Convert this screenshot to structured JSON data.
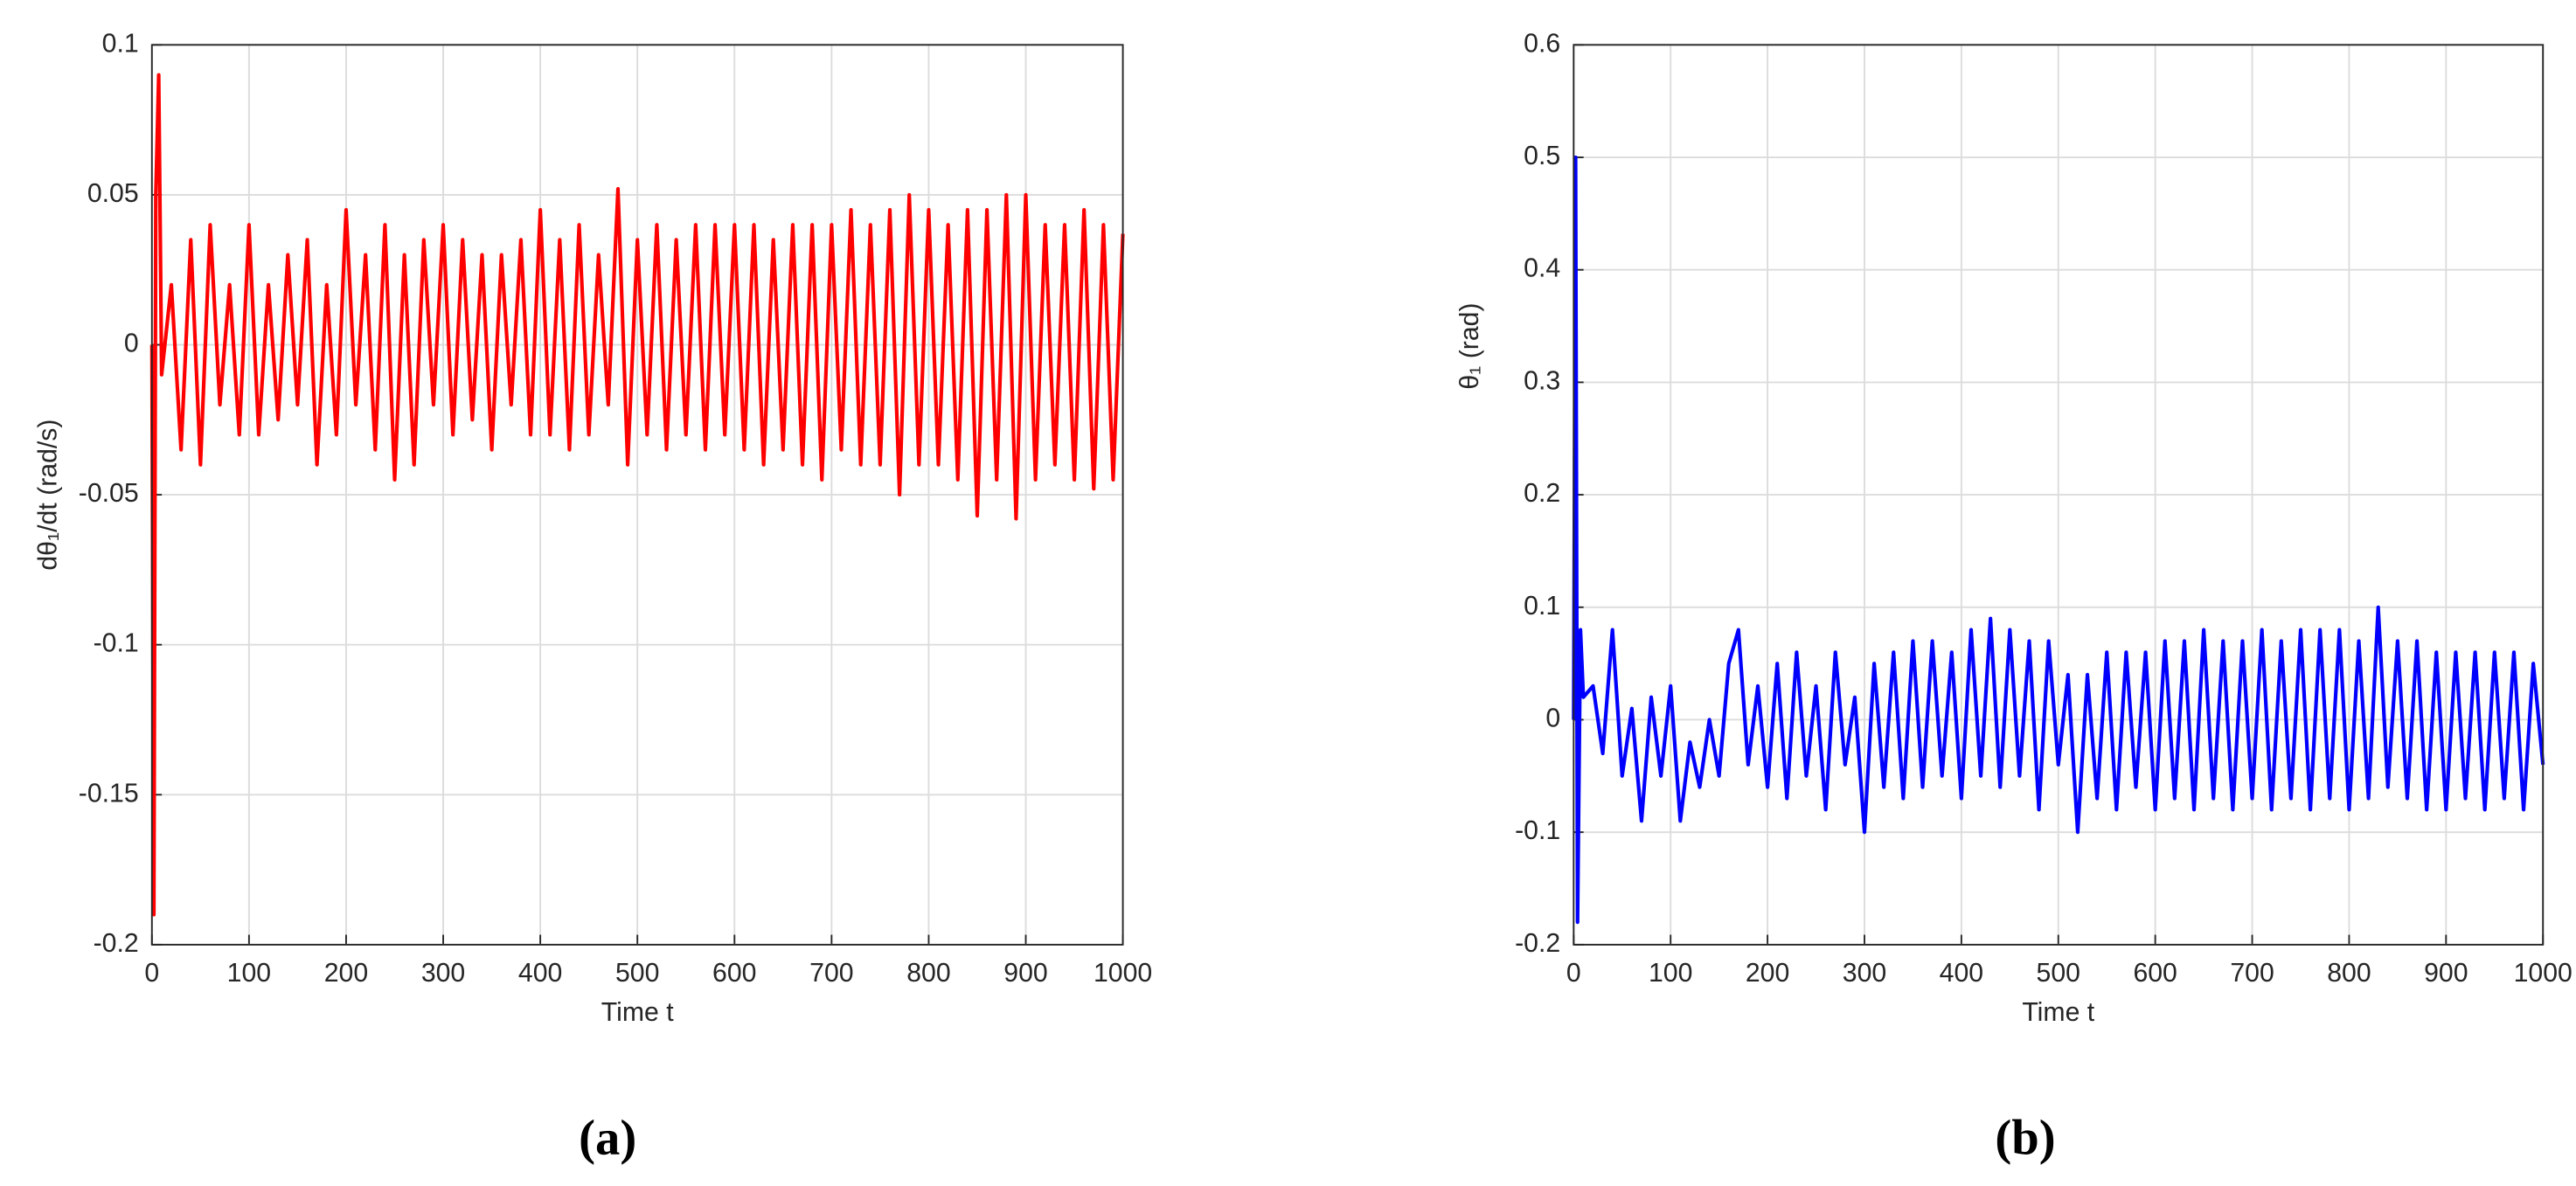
{
  "chart_data": [
    {
      "type": "line",
      "xlabel": "Time t",
      "ylabel": "dθ₁/dt (rad/s)",
      "caption": "(a)",
      "x": [
        0,
        2,
        4,
        7,
        10,
        20,
        30,
        40,
        50,
        60,
        70,
        80,
        90,
        100,
        110,
        120,
        130,
        140,
        150,
        160,
        170,
        180,
        190,
        200,
        210,
        220,
        230,
        240,
        250,
        260,
        270,
        280,
        290,
        300,
        310,
        320,
        330,
        340,
        350,
        360,
        370,
        380,
        390,
        400,
        410,
        420,
        430,
        440,
        450,
        460,
        470,
        480,
        490,
        500,
        510,
        520,
        530,
        540,
        550,
        560,
        570,
        580,
        590,
        600,
        610,
        620,
        630,
        640,
        650,
        660,
        670,
        680,
        690,
        700,
        710,
        720,
        730,
        740,
        750,
        760,
        770,
        780,
        790,
        800,
        810,
        820,
        830,
        840,
        850,
        860,
        870,
        880,
        890,
        900,
        910,
        920,
        930,
        940,
        950,
        960,
        970,
        980,
        990,
        1000
      ],
      "series": [
        {
          "color": "#ff0000",
          "values": [
            0,
            -0.19,
            0.05,
            0.09,
            -0.01,
            0.02,
            -0.035,
            0.035,
            -0.04,
            0.04,
            -0.02,
            0.02,
            -0.03,
            0.04,
            -0.03,
            0.02,
            -0.025,
            0.03,
            -0.02,
            0.035,
            -0.04,
            0.02,
            -0.03,
            0.045,
            -0.02,
            0.03,
            -0.035,
            0.04,
            -0.045,
            0.03,
            -0.04,
            0.035,
            -0.02,
            0.04,
            -0.03,
            0.035,
            -0.025,
            0.03,
            -0.035,
            0.03,
            -0.02,
            0.035,
            -0.03,
            0.045,
            -0.03,
            0.035,
            -0.035,
            0.04,
            -0.03,
            0.03,
            -0.02,
            0.052,
            -0.04,
            0.035,
            -0.03,
            0.04,
            -0.035,
            0.035,
            -0.03,
            0.04,
            -0.035,
            0.04,
            -0.03,
            0.04,
            -0.035,
            0.04,
            -0.04,
            0.035,
            -0.035,
            0.04,
            -0.04,
            0.04,
            -0.045,
            0.04,
            -0.035,
            0.045,
            -0.04,
            0.04,
            -0.04,
            0.045,
            -0.05,
            0.05,
            -0.04,
            0.045,
            -0.04,
            0.04,
            -0.045,
            0.045,
            -0.057,
            0.045,
            -0.045,
            0.05,
            -0.058,
            0.05,
            -0.045,
            0.04,
            -0.04,
            0.04,
            -0.045,
            0.045,
            -0.048,
            0.04,
            -0.045,
            0.037
          ]
        }
      ],
      "xlim": [
        0,
        1000
      ],
      "ylim": [
        -0.2,
        0.1
      ],
      "xticks": [
        0,
        100,
        200,
        300,
        400,
        500,
        600,
        700,
        800,
        900,
        1000
      ],
      "yticks": [
        -0.2,
        -0.15,
        -0.1,
        -0.05,
        0,
        0.05,
        0.1
      ],
      "grid": true
    },
    {
      "type": "line",
      "xlabel": "Time t",
      "ylabel": "θ₁ (rad)",
      "caption": "(b)",
      "x": [
        0,
        2,
        4,
        7,
        10,
        20,
        30,
        40,
        50,
        60,
        70,
        80,
        90,
        100,
        110,
        120,
        130,
        140,
        150,
        160,
        170,
        180,
        190,
        200,
        210,
        220,
        230,
        240,
        250,
        260,
        270,
        280,
        290,
        300,
        310,
        320,
        330,
        340,
        350,
        360,
        370,
        380,
        390,
        400,
        410,
        420,
        430,
        440,
        450,
        460,
        470,
        480,
        490,
        500,
        510,
        520,
        530,
        540,
        550,
        560,
        570,
        580,
        590,
        600,
        610,
        620,
        630,
        640,
        650,
        660,
        670,
        680,
        690,
        700,
        710,
        720,
        730,
        740,
        750,
        760,
        770,
        780,
        790,
        800,
        810,
        820,
        830,
        840,
        850,
        860,
        870,
        880,
        890,
        900,
        910,
        920,
        930,
        940,
        950,
        960,
        970,
        980,
        990,
        1000
      ],
      "series": [
        {
          "color": "#0000ff",
          "values": [
            0,
            0.5,
            -0.18,
            0.08,
            0.02,
            0.03,
            -0.03,
            0.08,
            -0.05,
            0.01,
            -0.09,
            0.02,
            -0.05,
            0.03,
            -0.09,
            -0.02,
            -0.06,
            0,
            -0.05,
            0.05,
            0.08,
            -0.04,
            0.03,
            -0.06,
            0.05,
            -0.07,
            0.06,
            -0.05,
            0.03,
            -0.08,
            0.06,
            -0.04,
            0.02,
            -0.1,
            0.05,
            -0.06,
            0.06,
            -0.07,
            0.07,
            -0.06,
            0.07,
            -0.05,
            0.06,
            -0.07,
            0.08,
            -0.05,
            0.09,
            -0.06,
            0.08,
            -0.05,
            0.07,
            -0.08,
            0.07,
            -0.04,
            0.04,
            -0.1,
            0.04,
            -0.07,
            0.06,
            -0.08,
            0.06,
            -0.06,
            0.06,
            -0.08,
            0.07,
            -0.07,
            0.07,
            -0.08,
            0.08,
            -0.07,
            0.07,
            -0.08,
            0.07,
            -0.07,
            0.08,
            -0.08,
            0.07,
            -0.07,
            0.08,
            -0.08,
            0.08,
            -0.07,
            0.08,
            -0.08,
            0.07,
            -0.07,
            0.1,
            -0.06,
            0.07,
            -0.07,
            0.07,
            -0.08,
            0.06,
            -0.08,
            0.06,
            -0.07,
            0.06,
            -0.08,
            0.06,
            -0.07,
            0.06,
            -0.08,
            0.05,
            -0.04
          ]
        }
      ],
      "xlim": [
        0,
        1000
      ],
      "ylim": [
        -0.2,
        0.6
      ],
      "xticks": [
        0,
        100,
        200,
        300,
        400,
        500,
        600,
        700,
        800,
        900,
        1000
      ],
      "yticks": [
        -0.2,
        -0.1,
        0,
        0.1,
        0.2,
        0.3,
        0.4,
        0.5,
        0.6
      ],
      "grid": true
    }
  ]
}
